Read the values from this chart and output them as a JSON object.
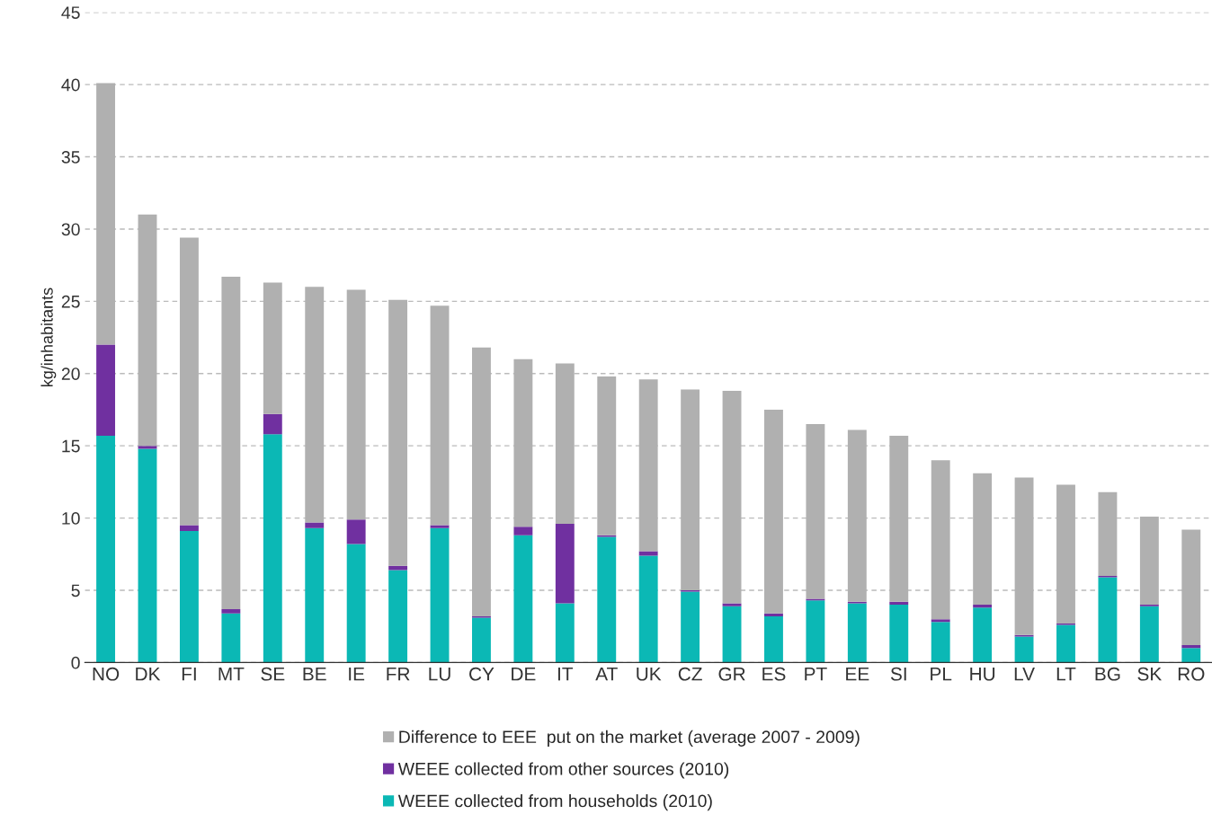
{
  "chart_data": {
    "type": "bar",
    "stacked": true,
    "ylabel": "kg/inhabitants",
    "categories": [
      "NO",
      "DK",
      "FI",
      "MT",
      "SE",
      "BE",
      "IE",
      "FR",
      "LU",
      "CY",
      "DE",
      "IT",
      "AT",
      "UK",
      "CZ",
      "GR",
      "ES",
      "PT",
      "EE",
      "SI",
      "PL",
      "HU",
      "LV",
      "LT",
      "BG",
      "SK",
      "RO"
    ],
    "series": [
      {
        "name": "WEEE collected from households (2010)",
        "color": "#0bb8b5",
        "values": [
          15.7,
          14.8,
          9.1,
          3.4,
          15.8,
          9.3,
          8.2,
          6.4,
          9.3,
          3.1,
          8.8,
          4.1,
          8.7,
          7.4,
          4.9,
          3.9,
          3.2,
          4.3,
          4.1,
          4.0,
          2.8,
          3.8,
          1.8,
          2.6,
          5.9,
          3.9,
          1.0
        ]
      },
      {
        "name": "WEEE collected from other sources (2010)",
        "color": "#7030a0",
        "values": [
          6.3,
          0.2,
          0.4,
          0.3,
          1.4,
          0.4,
          1.7,
          0.3,
          0.2,
          0.1,
          0.6,
          5.5,
          0.1,
          0.3,
          0.1,
          0.2,
          0.2,
          0.1,
          0.1,
          0.2,
          0.2,
          0.2,
          0.1,
          0.1,
          0.1,
          0.1,
          0.2
        ]
      },
      {
        "name": "Difference to EEE  put on the market (average 2007 - 2009)",
        "color": "#b0b0b0",
        "values": [
          18.1,
          16.0,
          19.9,
          23.0,
          9.1,
          16.3,
          15.9,
          18.4,
          15.2,
          18.6,
          11.6,
          11.1,
          11.0,
          11.9,
          13.9,
          14.7,
          14.1,
          12.1,
          11.9,
          11.5,
          11.0,
          9.1,
          10.9,
          9.6,
          5.8,
          6.1,
          8.0
        ]
      }
    ],
    "ylim": [
      0,
      45
    ],
    "yticks": [
      0,
      5,
      10,
      15,
      20,
      25,
      30,
      35,
      40,
      45
    ],
    "grid": "y",
    "line_style": "dashed",
    "legend": "bottom"
  }
}
